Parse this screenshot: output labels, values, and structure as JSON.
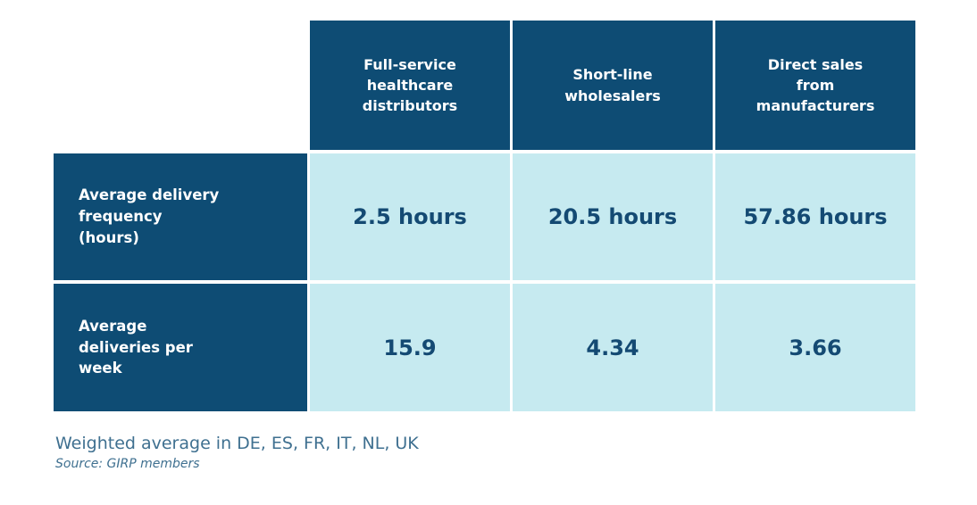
{
  "colors": {
    "header_bg": "#0e4c74",
    "header_text": "#ffffff",
    "cell_bg": "#c6eaf0",
    "value_text": "#144a73",
    "note_text": "#3f7090",
    "page_bg": "#ffffff"
  },
  "table": {
    "col_headers": [
      "Full-service\nhealthcare\ndistributors",
      "Short-line\nwholesalers",
      "Direct sales\nfrom\nmanufacturers"
    ],
    "row_headers": [
      "Average delivery\nfrequency\n(hours)",
      "Average\ndeliveries per\nweek"
    ],
    "cells": [
      [
        "2.5 hours",
        "20.5 hours",
        "57.86 hours"
      ],
      [
        "15.9",
        "4.34",
        "3.66"
      ]
    ]
  },
  "footnote": "Weighted average in DE, ES, FR, IT, NL, UK",
  "source": "Source: GIRP members",
  "chart_data": {
    "type": "table",
    "columns": [
      "Full-service healthcare distributors",
      "Short-line wholesalers",
      "Direct sales from manufacturers"
    ],
    "rows": [
      {
        "label": "Average delivery frequency (hours)",
        "values": [
          2.5,
          20.5,
          57.86
        ],
        "unit": "hours",
        "display_values": [
          "2.5 hours",
          "20.5 hours",
          "57.86 hours"
        ]
      },
      {
        "label": "Average deliveries per week",
        "values": [
          15.9,
          4.34,
          3.66
        ],
        "unit": "deliveries/week",
        "display_values": [
          "15.9",
          "4.34",
          "3.66"
        ]
      }
    ],
    "note": "Weighted average in DE, ES, FR, IT, NL, UK",
    "source": "Source: GIRP members",
    "legend_position": "none",
    "grid": "off"
  }
}
